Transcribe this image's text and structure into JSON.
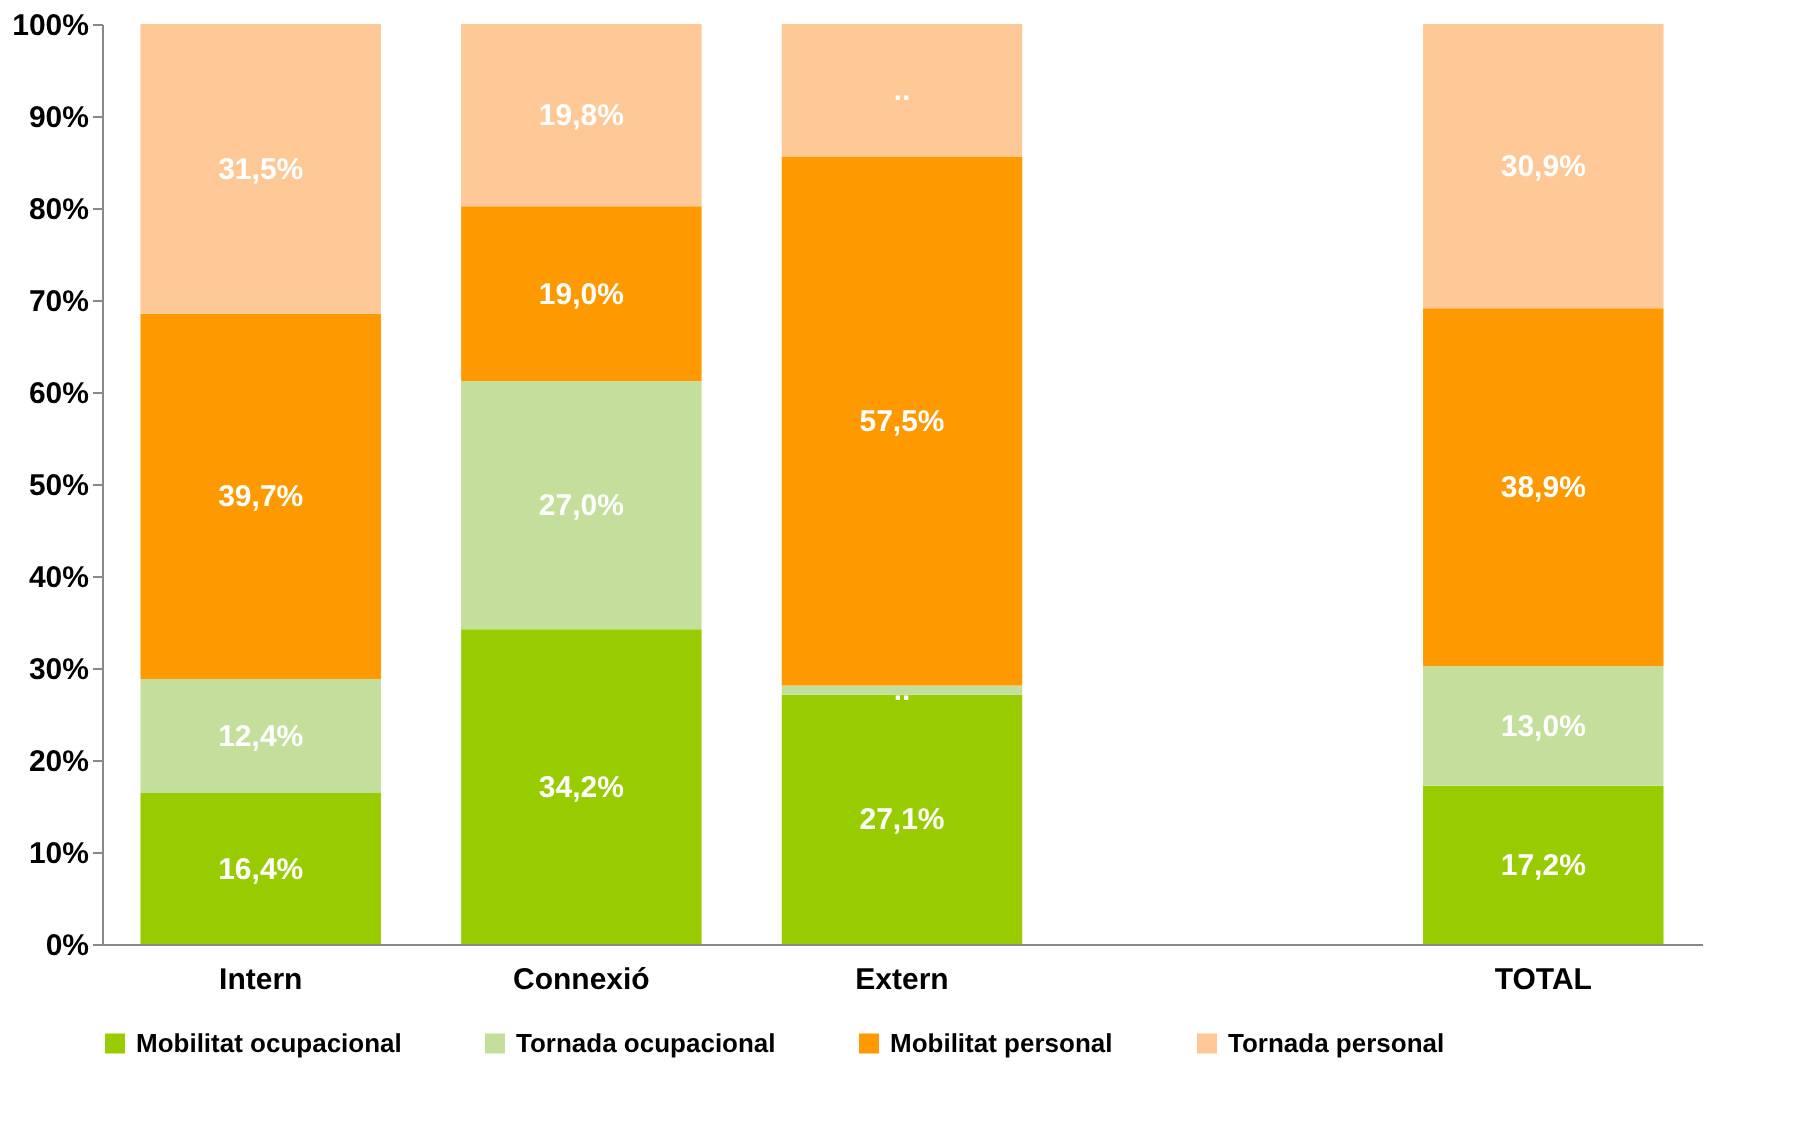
{
  "chart_data": {
    "type": "bar",
    "stacked": true,
    "categories": [
      "Intern",
      "Connexió",
      "Extern",
      null,
      "TOTAL"
    ],
    "series": [
      {
        "name": "Mobilitat ocupacional",
        "color": "#99cc00",
        "values": [
          16.4,
          34.2,
          27.1,
          null,
          17.2
        ],
        "value_labels": [
          "16,4%",
          "34,2%",
          "27,1%",
          null,
          "17,2%"
        ]
      },
      {
        "name": "Tornada ocupacional",
        "color": "#c4df9b",
        "values": [
          12.4,
          27.0,
          1.0,
          null,
          13.0
        ],
        "value_labels": [
          "12,4%",
          "27,0%",
          "..",
          null,
          "13,0%"
        ]
      },
      {
        "name": "Mobilitat personal",
        "color": "#ff9900",
        "values": [
          39.7,
          19.0,
          57.5,
          null,
          38.9
        ],
        "value_labels": [
          "39,7%",
          "19,0%",
          "57,5%",
          null,
          "38,9%"
        ]
      },
      {
        "name": "Tornada personal",
        "color": "#ffc896",
        "values": [
          31.5,
          19.8,
          14.4,
          null,
          30.9
        ],
        "value_labels": [
          "31,5%",
          "19,8%",
          "..",
          null,
          "30,9%"
        ]
      }
    ],
    "ylim": [
      0,
      100
    ],
    "yticks": [
      {
        "value": 0,
        "label": "0%"
      },
      {
        "value": 10,
        "label": "10%"
      },
      {
        "value": 20,
        "label": "20%"
      },
      {
        "value": 30,
        "label": "30%"
      },
      {
        "value": 40,
        "label": "40%"
      },
      {
        "value": 50,
        "label": "50%"
      },
      {
        "value": 60,
        "label": "60%"
      },
      {
        "value": 70,
        "label": "70%"
      },
      {
        "value": 80,
        "label": "80%"
      },
      {
        "value": 90,
        "label": "90%"
      },
      {
        "value": 100,
        "label": "100%"
      }
    ],
    "grid": false,
    "legend": "bottom"
  }
}
